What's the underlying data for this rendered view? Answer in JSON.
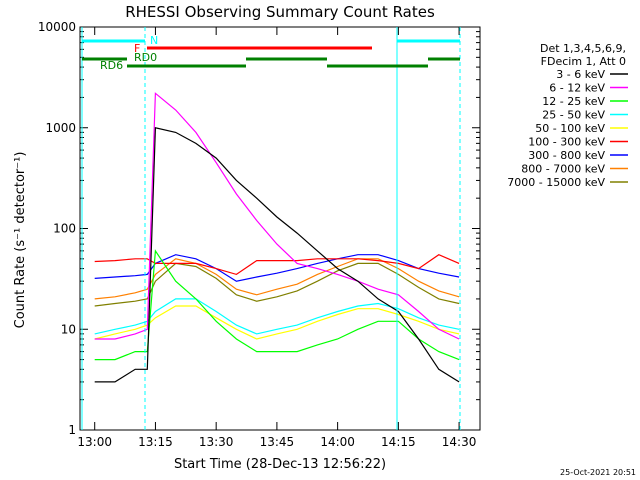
{
  "chart_data": {
    "type": "line",
    "title": "RHESSI Observing Summary Count Rates",
    "xlabel": "Start Time (28-Dec-13 12:56:22)",
    "ylabel": "Count Rate (s⁻¹ detector⁻¹)",
    "y_scale": "log",
    "ylim": [
      1,
      10000
    ],
    "x_ticks": [
      "13:00",
      "13:15",
      "13:30",
      "13:45",
      "14:00",
      "14:15",
      "14:30"
    ],
    "y_ticks": [
      "1",
      "10",
      "100",
      "1000",
      "10000"
    ],
    "timestamp": "25-Oct-2021 20:51",
    "legend": {
      "header": [
        "Det 1,3,4,5,6,9,",
        "FDecim 1, Att 0"
      ],
      "placement": "right"
    },
    "series": [
      {
        "name": "3 - 6 keV",
        "color": "#000000",
        "x": [
          "13:00",
          "13:05",
          "13:10",
          "13:13",
          "13:15",
          "13:20",
          "13:25",
          "13:30",
          "13:35",
          "13:40",
          "13:45",
          "13:50",
          "13:55",
          "14:00",
          "14:05",
          "14:10",
          "14:15",
          "14:20",
          "14:25",
          "14:30"
        ],
        "y": [
          3,
          3,
          4,
          4,
          1000,
          900,
          700,
          500,
          300,
          200,
          130,
          90,
          60,
          40,
          30,
          20,
          15,
          8,
          4,
          3
        ]
      },
      {
        "name": "6 - 12 keV",
        "color": "#ff00ff",
        "x": [
          "13:00",
          "13:05",
          "13:10",
          "13:13",
          "13:15",
          "13:20",
          "13:25",
          "13:30",
          "13:35",
          "13:40",
          "13:45",
          "13:50",
          "13:55",
          "14:00",
          "14:05",
          "14:10",
          "14:15",
          "14:20",
          "14:25",
          "14:30"
        ],
        "y": [
          8,
          8,
          9,
          10,
          2200,
          1500,
          900,
          450,
          220,
          120,
          70,
          45,
          40,
          35,
          30,
          25,
          22,
          15,
          10,
          8
        ]
      },
      {
        "name": "12 - 25 keV",
        "color": "#00ff00",
        "x": [
          "13:00",
          "13:05",
          "13:10",
          "13:13",
          "13:15",
          "13:20",
          "13:25",
          "13:30",
          "13:35",
          "13:40",
          "13:45",
          "13:50",
          "13:55",
          "14:00",
          "14:05",
          "14:10",
          "14:15",
          "14:20",
          "14:25",
          "14:30"
        ],
        "y": [
          5,
          5,
          6,
          6,
          60,
          30,
          20,
          12,
          8,
          6,
          6,
          6,
          7,
          8,
          10,
          12,
          12,
          8,
          6,
          5
        ]
      },
      {
        "name": "25 - 50 keV",
        "color": "#00ffff",
        "x": [
          "13:00",
          "13:05",
          "13:10",
          "13:13",
          "13:15",
          "13:20",
          "13:25",
          "13:30",
          "13:35",
          "13:40",
          "13:45",
          "13:50",
          "13:55",
          "14:00",
          "14:05",
          "14:10",
          "14:15",
          "14:20",
          "14:25",
          "14:30"
        ],
        "y": [
          9,
          10,
          11,
          12,
          15,
          20,
          20,
          15,
          11,
          9,
          10,
          11,
          13,
          15,
          17,
          18,
          16,
          13,
          11,
          10
        ]
      },
      {
        "name": "50 - 100 keV",
        "color": "#ffff00",
        "x": [
          "13:00",
          "13:05",
          "13:10",
          "13:13",
          "13:15",
          "13:20",
          "13:25",
          "13:30",
          "13:35",
          "13:40",
          "13:45",
          "13:50",
          "13:55",
          "14:00",
          "14:05",
          "14:10",
          "14:15",
          "14:20",
          "14:25",
          "14:30"
        ],
        "y": [
          8,
          9,
          10,
          11,
          13,
          17,
          17,
          13,
          10,
          8,
          9,
          10,
          12,
          14,
          16,
          16,
          14,
          12,
          10,
          9
        ]
      },
      {
        "name": "100 - 300 keV",
        "color": "#ff0000",
        "x": [
          "13:00",
          "13:05",
          "13:10",
          "13:13",
          "13:15",
          "13:20",
          "13:25",
          "13:30",
          "13:35",
          "13:40",
          "13:45",
          "13:50",
          "13:55",
          "14:00",
          "14:05",
          "14:10",
          "14:15",
          "14:20",
          "14:25",
          "14:30"
        ],
        "y": [
          47,
          48,
          50,
          50,
          45,
          45,
          45,
          40,
          35,
          48,
          48,
          48,
          50,
          50,
          50,
          48,
          45,
          40,
          55,
          45
        ]
      },
      {
        "name": "300 - 800 keV",
        "color": "#0000ff",
        "x": [
          "13:00",
          "13:05",
          "13:10",
          "13:13",
          "13:15",
          "13:20",
          "13:25",
          "13:30",
          "13:35",
          "13:40",
          "13:45",
          "13:50",
          "13:55",
          "14:00",
          "14:05",
          "14:10",
          "14:15",
          "14:20",
          "14:25",
          "14:30"
        ],
        "y": [
          32,
          33,
          34,
          35,
          45,
          55,
          50,
          40,
          30,
          33,
          36,
          40,
          45,
          50,
          55,
          55,
          48,
          40,
          36,
          33
        ]
      },
      {
        "name": "800 - 7000 keV",
        "color": "#ff8000",
        "x": [
          "13:00",
          "13:05",
          "13:10",
          "13:13",
          "13:15",
          "13:20",
          "13:25",
          "13:30",
          "13:35",
          "13:40",
          "13:45",
          "13:50",
          "13:55",
          "14:00",
          "14:05",
          "14:10",
          "14:15",
          "14:20",
          "14:25",
          "14:30"
        ],
        "y": [
          20,
          21,
          23,
          25,
          35,
          50,
          45,
          35,
          25,
          22,
          25,
          28,
          35,
          42,
          50,
          50,
          40,
          30,
          24,
          21
        ]
      },
      {
        "name": "7000 - 15000 keV",
        "color": "#808000",
        "x": [
          "13:00",
          "13:05",
          "13:10",
          "13:13",
          "13:15",
          "13:20",
          "13:25",
          "13:30",
          "13:35",
          "13:40",
          "13:45",
          "13:50",
          "13:55",
          "14:00",
          "14:05",
          "14:10",
          "14:15",
          "14:20",
          "14:25",
          "14:30"
        ],
        "y": [
          17,
          18,
          19,
          20,
          30,
          45,
          42,
          32,
          22,
          19,
          21,
          24,
          30,
          38,
          45,
          45,
          35,
          26,
          20,
          18
        ]
      }
    ],
    "flag_bars": [
      {
        "name": "N",
        "label": "N",
        "color": "#00ffff"
      },
      {
        "name": "F",
        "label": "F",
        "color": "#ff0000"
      },
      {
        "name": "RD0",
        "label": "RD0",
        "color": "#008000"
      },
      {
        "name": "RD6",
        "label": "RD6",
        "color": "#008000"
      }
    ]
  }
}
